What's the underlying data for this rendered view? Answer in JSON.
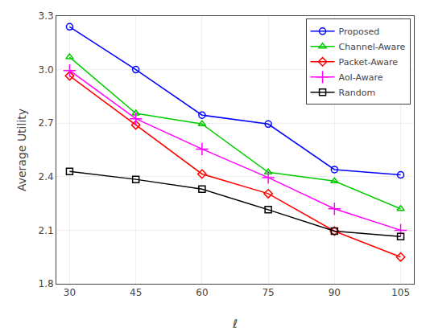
{
  "chart_data": {
    "type": "line",
    "x_label": "ℓ",
    "y_label": "Average Utility",
    "x": [
      30,
      45,
      60,
      75,
      90,
      105
    ],
    "series": [
      {
        "name": "Proposed",
        "color": "#0000ff",
        "marker": "circle",
        "values": [
          3.24,
          3.0,
          2.745,
          2.695,
          2.44,
          2.41
        ]
      },
      {
        "name": "Channel-Aware",
        "color": "#00cc00",
        "marker": "triangle-up",
        "values": [
          3.07,
          2.755,
          2.695,
          2.425,
          2.375,
          2.22
        ]
      },
      {
        "name": "Packet-Aware",
        "color": "#ff0000",
        "marker": "diamond",
        "values": [
          2.965,
          2.69,
          2.415,
          2.305,
          2.095,
          1.95
        ]
      },
      {
        "name": "AoI-Aware",
        "color": "#ff00ff",
        "marker": "plus",
        "values": [
          2.995,
          2.725,
          2.555,
          2.395,
          2.22,
          2.1
        ]
      },
      {
        "name": "Random",
        "color": "#000000",
        "marker": "square",
        "values": [
          2.43,
          2.385,
          2.33,
          2.215,
          2.095,
          2.065
        ]
      }
    ],
    "xlim": [
      27,
      108
    ],
    "ylim": [
      1.8,
      3.3
    ],
    "xticks": [
      30,
      45,
      60,
      75,
      90,
      105
    ],
    "yticks": [
      1.8,
      2.1,
      2.4,
      2.7,
      {
        "value": 3.0,
        "label": "3.0"
      },
      3.3
    ],
    "grid": true,
    "legend": "upper right"
  }
}
